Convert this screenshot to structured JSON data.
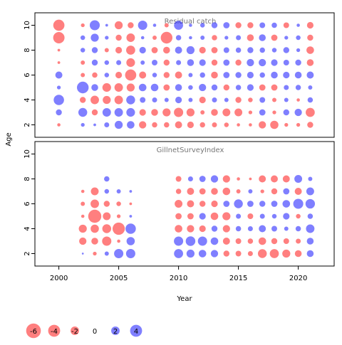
{
  "colors": {
    "negative": "#ff0000",
    "positive": "#0000ff",
    "bubble_alpha": 0.5,
    "panel_border": "#000000",
    "panel_title": "#777777"
  },
  "chart_data": {
    "type": "scatter",
    "subtype": "bubble",
    "xlabel": "Year",
    "ylabel": "Age",
    "xlim": [
      1998,
      2023
    ],
    "ylim": [
      1,
      11
    ],
    "xticks": [
      "2000",
      "2005",
      "2010",
      "2015",
      "2020"
    ],
    "xtick_values": [
      2000,
      2005,
      2010,
      2015,
      2020
    ],
    "yticks": [
      "2",
      "4",
      "6",
      "8",
      "10"
    ],
    "ytick_values": [
      2,
      4,
      6,
      8,
      10
    ],
    "legend": {
      "placement": "bottom",
      "entries": [
        {
          "label": "-6",
          "value": -6
        },
        {
          "label": "-4",
          "value": -4
        },
        {
          "label": "-2",
          "value": -2
        },
        {
          "label": "0",
          "value": 0
        },
        {
          "label": "2",
          "value": 2
        },
        {
          "label": "4",
          "value": 4
        }
      ]
    },
    "panels": [
      {
        "title": "Residual catch",
        "years": [
          2000,
          2002,
          2003,
          2004,
          2005,
          2006,
          2007,
          2008,
          2009,
          2010,
          2011,
          2012,
          2013,
          2014,
          2015,
          2016,
          2017,
          2018,
          2019,
          2020,
          2021
        ],
        "ages": [
          2,
          3,
          4,
          5,
          6,
          7,
          8,
          9,
          10
        ],
        "residuals": [
          [
            -0.3,
            0.4,
            0.2,
            0.7,
            1.8,
            1.6,
            -1.5,
            -0.8,
            -0.8,
            -1.4,
            -1.2,
            -0.8,
            -0.7,
            -0.6,
            -0.3,
            -0.3,
            -1.5,
            -1.9,
            -0.4,
            -0.4,
            -1.0
          ],
          [
            1.0,
            2.2,
            -1.0,
            2.0,
            2.0,
            2.1,
            -1.2,
            -1.3,
            -1.8,
            -2.4,
            -1.8,
            -0.5,
            -1.3,
            -1.7,
            -1.7,
            -0.4,
            1.1,
            -0.4,
            1.0,
            1.5,
            -2.3
          ],
          [
            3.0,
            -1.0,
            -2.0,
            -1.8,
            -2.0,
            2.2,
            0.9,
            0.7,
            0.5,
            1.2,
            0.5,
            -1.2,
            0.7,
            0.5,
            -1.0,
            -0.6,
            0.9,
            -0.5,
            0.5,
            -0.3,
            0.8
          ],
          [
            0.4,
            3.8,
            1.3,
            -2.1,
            -2.0,
            -1.8,
            1.6,
            1.6,
            -1.1,
            1.3,
            0.6,
            1.5,
            1.0,
            -1.0,
            0.8,
            1.2,
            -1.1,
            -1.1,
            0.7,
            0.8,
            0.5
          ],
          [
            1.4,
            -0.5,
            -0.8,
            0.6,
            -1.2,
            -3.5,
            -1.4,
            0.6,
            -1.0,
            -1.4,
            0.5,
            0.8,
            -1.3,
            1.1,
            1.0,
            1.2,
            0.8,
            1.3,
            1.2,
            1.3,
            1.4
          ],
          [
            -0.2,
            -0.5,
            1.0,
            0.6,
            0.7,
            -2.1,
            0.5,
            0.9,
            -1.0,
            0.7,
            1.3,
            1.2,
            -1.0,
            1.1,
            -1.0,
            1.5,
            1.5,
            1.2,
            0.9,
            1.0,
            -1.3
          ],
          [
            -0.2,
            0.6,
            1.0,
            -0.5,
            -1.2,
            -2.3,
            1.2,
            -1.1,
            -1.3,
            1.4,
            1.8,
            -1.2,
            -1.1,
            0.9,
            0.8,
            1.0,
            0.8,
            0.6,
            1.0,
            0.4,
            -1.6
          ],
          [
            -3.6,
            0.6,
            1.8,
            0.4,
            -1.0,
            -2.0,
            0.3,
            -0.5,
            -3.8,
            0.8,
            0.3,
            0.5,
            -0.8,
            0.4,
            0.7,
            -1.3,
            1.3,
            -1.1,
            0.4,
            0.6,
            -1.0
          ],
          [
            -3.5,
            -0.4,
            2.8,
            0.2,
            -1.8,
            -1.0,
            2.4,
            0.3,
            -0.5,
            2.3,
            0.3,
            0.6,
            1.0,
            1.1,
            -1.0,
            -1.0,
            0.9,
            0.8,
            -0.9,
            0.3,
            -1.2
          ]
        ]
      },
      {
        "title": "GillnetSurveyIndex",
        "years": [
          2002,
          2003,
          2004,
          2005,
          2006,
          2010,
          2011,
          2012,
          2013,
          2014,
          2015,
          2016,
          2017,
          2018,
          2019,
          2020,
          2021
        ],
        "ages": [
          2,
          3,
          4,
          5,
          6,
          7,
          8
        ],
        "residuals": [
          [
            0.1,
            -0.4,
            0.5,
            2.4,
            2.4,
            2.3,
            1.8,
            1.6,
            1.5,
            -1.0,
            -0.9,
            -0.7,
            -2.2,
            -2.3,
            -1.8,
            -1.3,
            1.3
          ],
          [
            -1.5,
            -1.3,
            -2.4,
            -0.3,
            1.9,
            2.4,
            2.6,
            2.4,
            1.6,
            -1.4,
            -0.9,
            -0.8,
            -1.6,
            -1.0,
            -0.9,
            -0.7,
            1.3
          ],
          [
            -1.8,
            -1.9,
            -2.2,
            -4.2,
            3.0,
            -1.6,
            -1.5,
            -1.2,
            1.0,
            -1.5,
            0.8,
            0.7,
            1.4,
            0.9,
            0.5,
            0.8,
            2.0
          ],
          [
            -0.3,
            -4.8,
            -1.7,
            -0.4,
            0.2,
            -1.1,
            -1.1,
            1.2,
            -1.6,
            -1.8,
            0.7,
            -0.9,
            0.7,
            0.6,
            1.2,
            -0.6,
            0.8
          ],
          [
            -0.5,
            -2.0,
            -1.0,
            -0.6,
            -0.2,
            -1.7,
            -1.4,
            -1.0,
            -1.2,
            1.1,
            2.2,
            1.1,
            1.0,
            1.1,
            1.6,
            2.8,
            2.5
          ],
          [
            -0.3,
            -1.7,
            0.6,
            0.5,
            0.2,
            -0.8,
            -1.4,
            -1.1,
            -1.3,
            -1.6,
            -0.5,
            0.5,
            -0.4,
            -1.0,
            1.1,
            -1.4,
            1.7
          ],
          [
            0,
            0,
            0.8,
            0,
            0,
            -0.9,
            0.7,
            1.1,
            1.5,
            -1.5,
            -0.3,
            -0.2,
            -1.4,
            -1.4,
            -1.4,
            1.7,
            0.5
          ]
        ]
      }
    ]
  }
}
